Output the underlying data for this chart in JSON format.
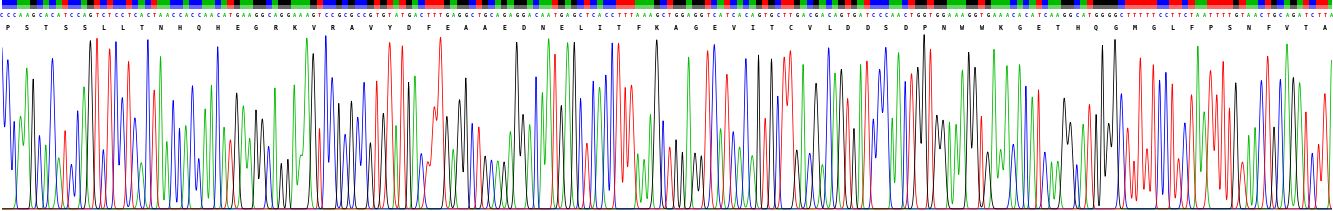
{
  "dna_sequence": "CCCAAGCACATCCAGTCTCCTCACTAACCACCAACATGAAGGCAGGAAAGTCCGCGCCGTGTATGACTTTGAGGCTGCAGAGGACAATGAGCTCACCTTTAAAGCTGGAGGTCATCACAGTGCTTGACGACAGTGATCCCAACTGGTGGAAAGGTGAAACACATCAAGGCATGGGGCTTTTTCCTTCTAATTTTGTAACTGCAGATCTTACT",
  "protein_sequence": "PSTSSLLTNHQHEGRKVRAVYDFEAAEDNELITFKAGEVITCVLDDSDPNWWKGETHQGMGLFPSNFVTADLT",
  "dna_color_map": {
    "A": "#00bb00",
    "T": "#ff0000",
    "G": "#000000",
    "C": "#0000ff"
  },
  "n_bars": 210,
  "figwidth": 13.3,
  "figheight": 2.11,
  "dpi": 100,
  "bg_color": "#ffffff",
  "chrom_colors": [
    "#0000ff",
    "#ff0000",
    "#00bb00",
    "#000000"
  ],
  "seed": 42
}
